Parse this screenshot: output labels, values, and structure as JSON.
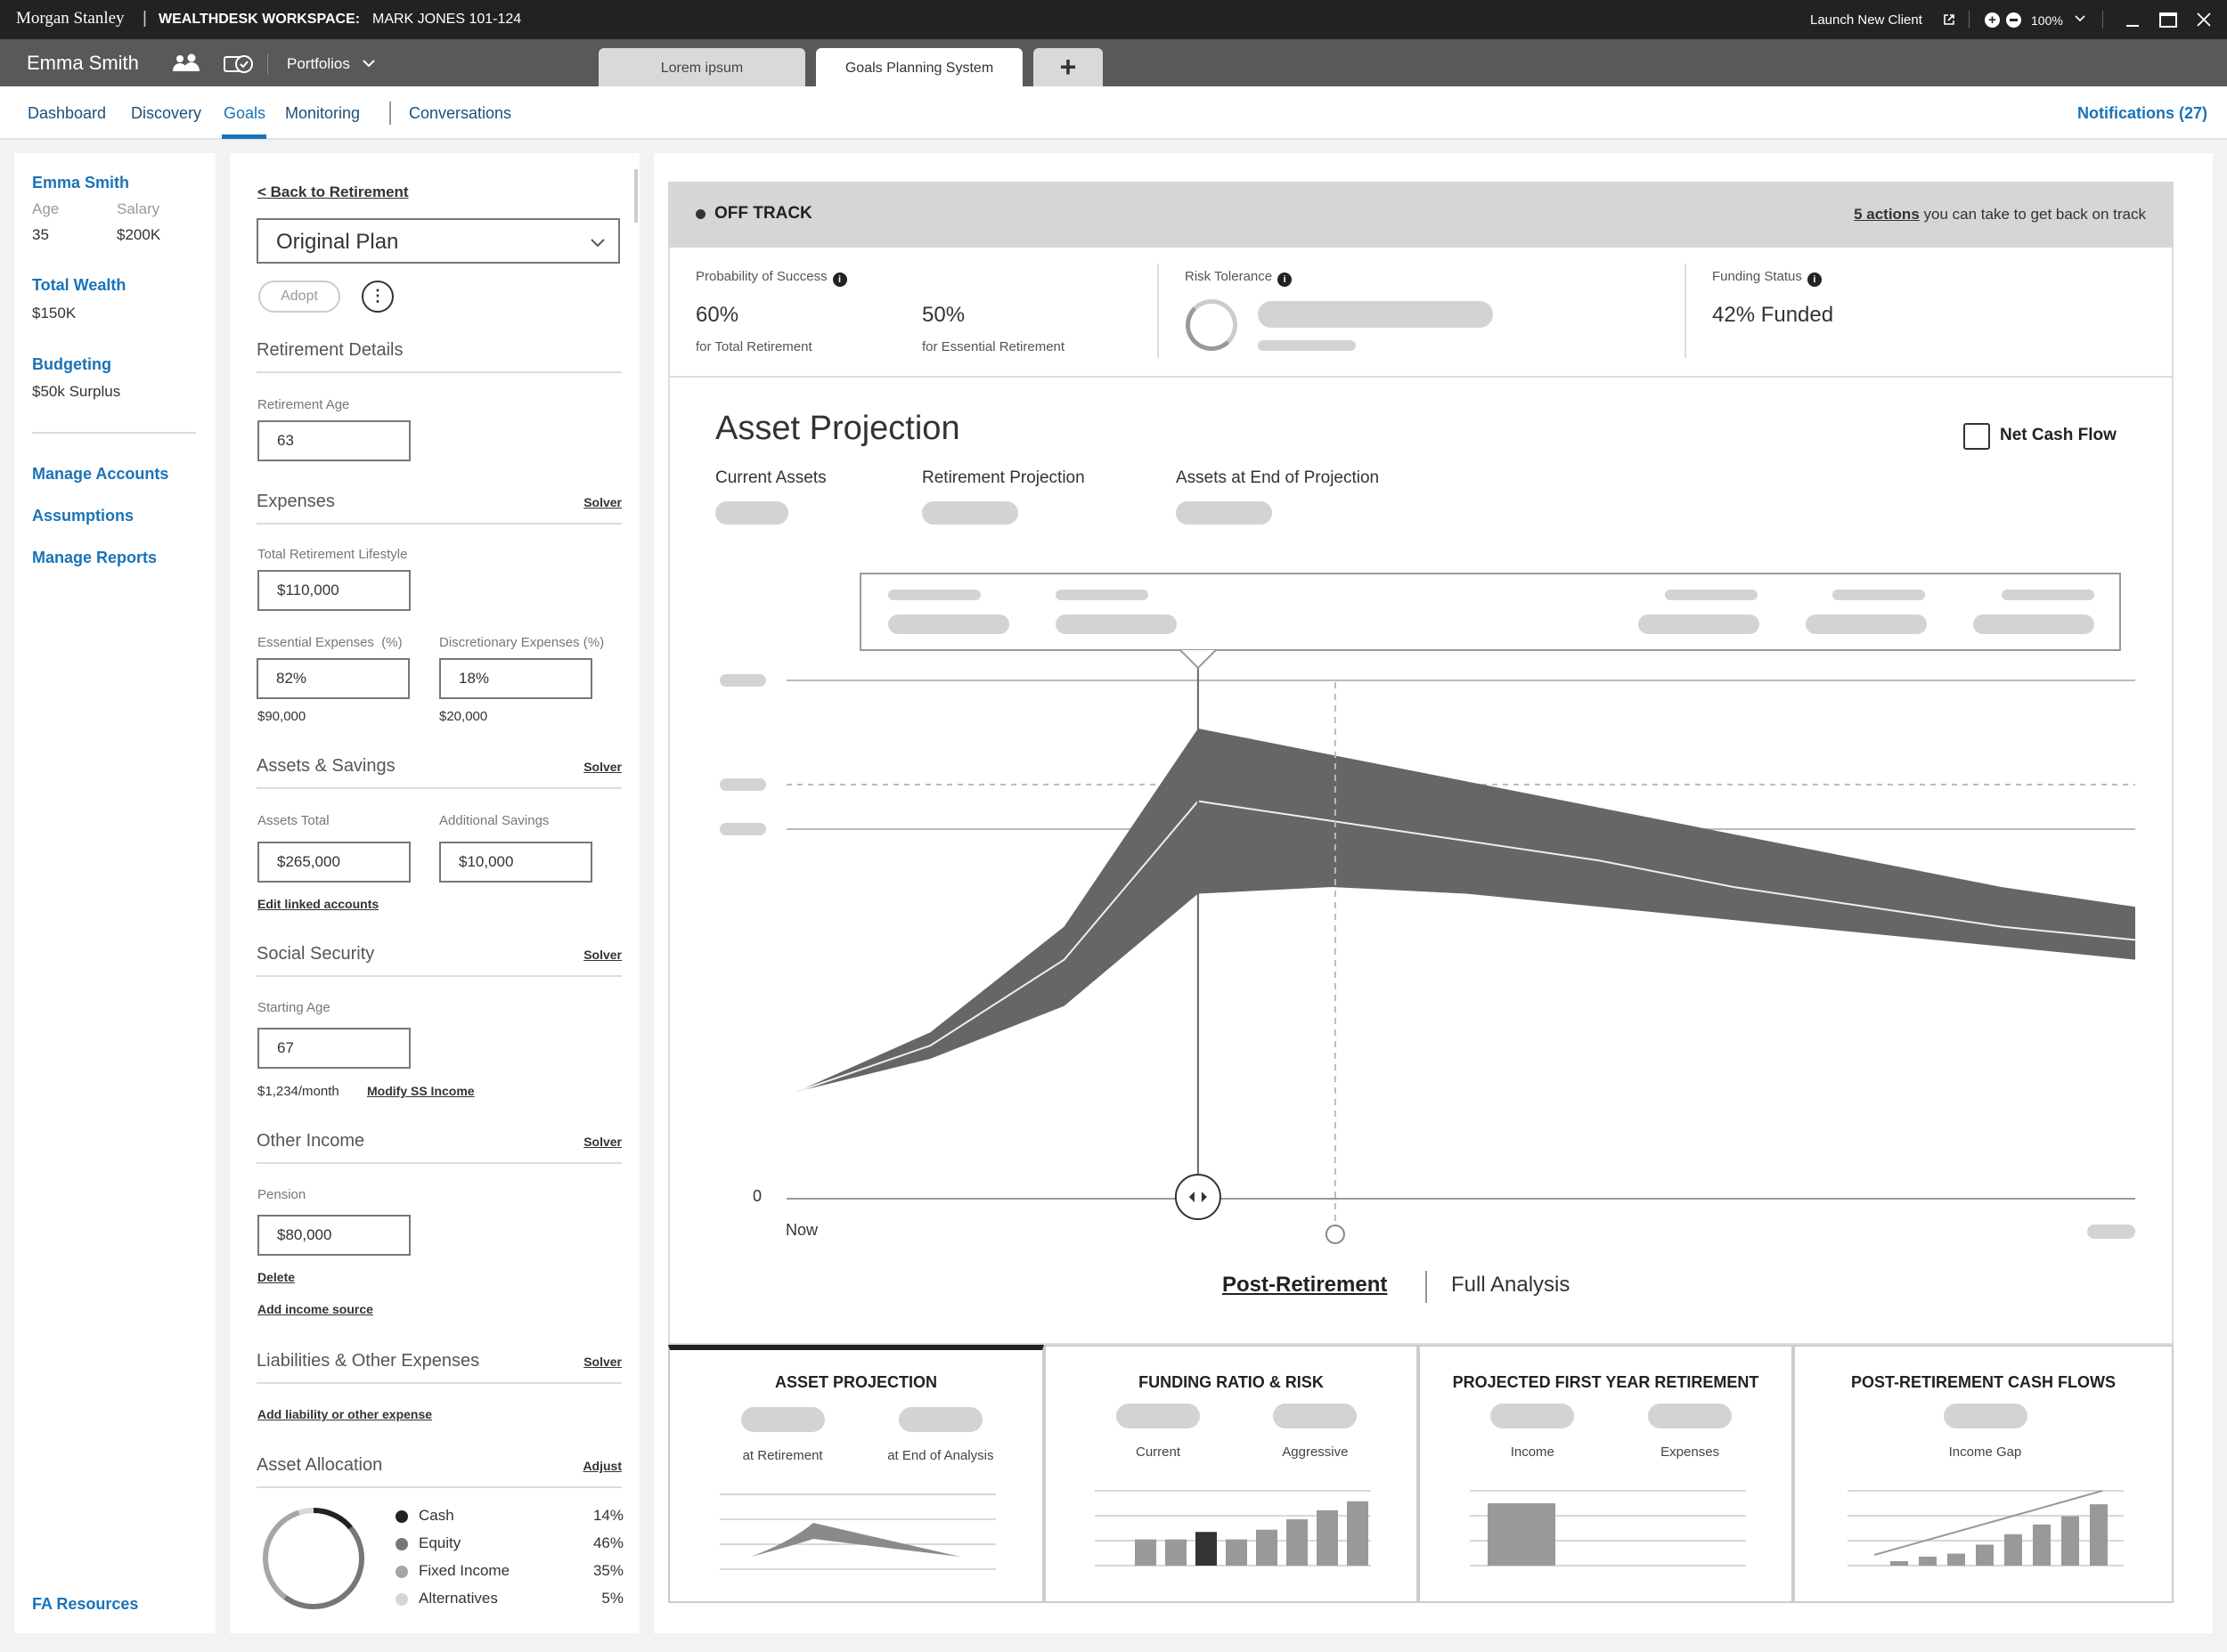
{
  "topbar": {
    "brand": "Morgan Stanley",
    "separator": "|",
    "workspace_label": "WEALTHDESK WORKSPACE:",
    "workspace_user": "MARK JONES 101-124",
    "launch_label": "Launch New Client",
    "zoom": "100%"
  },
  "client_bar": {
    "name": "Emma Smith",
    "portfolios_label": "Portfolios",
    "tabs": [
      "Lorem ipsum",
      "Goals Planning System"
    ],
    "add_tab_symbol": "+"
  },
  "nav": {
    "items": [
      "Dashboard",
      "Discovery",
      "Goals",
      "Monitoring",
      "Conversations"
    ],
    "active": "Goals",
    "notifications": "Notifications (27)"
  },
  "profile": {
    "name": "Emma Smith",
    "age_label": "Age",
    "age": "35",
    "salary_label": "Salary",
    "salary": "$200K",
    "wealth_label": "Total Wealth",
    "wealth": "$150K",
    "budget_label": "Budgeting",
    "budget": "$50k Surplus",
    "links": [
      "Manage Accounts",
      "Assumptions",
      "Manage Reports"
    ],
    "fa_resources": "FA Resources"
  },
  "plan": {
    "back_link": "< Back to Retirement",
    "plan_select": "Original Plan",
    "adopt": "Adopt",
    "retirement_details": "Retirement Details",
    "retirement_age_label": "Retirement Age",
    "retirement_age": "63",
    "expenses": "Expenses",
    "solver": "Solver",
    "total_lifestyle_label": "Total Retirement Lifestyle",
    "total_lifestyle": "$110,000",
    "essential_label": "Essential Expenses  (%)",
    "essential": "82%",
    "essential_amount": "$90,000",
    "discretionary_label": "Discretionary Expenses (%)",
    "discretionary": "18%",
    "discretionary_amount": "$20,000",
    "assets_savings": "Assets & Savings",
    "assets_total_label": "Assets Total",
    "assets_total": "$265,000",
    "additional_savings_label": "Additional Savings",
    "additional_savings": "$10,000",
    "edit_linked": "Edit linked accounts",
    "social_security": "Social Security",
    "starting_age_label": "Starting Age",
    "starting_age": "67",
    "ss_monthly": "$1,234/month",
    "modify_ss": "Modify SS Income",
    "other_income": "Other Income",
    "pension_label": "Pension",
    "pension": "$80,000",
    "delete": "Delete",
    "add_income": "Add income source",
    "liabilities": "Liabilities & Other Expenses",
    "add_liability": "Add liability or other expense",
    "asset_allocation": "Asset Allocation",
    "adjust": "Adjust",
    "allocation": [
      {
        "name": "Cash",
        "pct": "14%",
        "color": "#222222"
      },
      {
        "name": "Equity",
        "pct": "46%",
        "color": "#777777"
      },
      {
        "name": "Fixed Income",
        "pct": "35%",
        "color": "#a6a6a6"
      },
      {
        "name": "Alternatives",
        "pct": "5%",
        "color": "#d6d6d6"
      }
    ]
  },
  "status": {
    "label": "OFF TRACK",
    "actions_link": "5 actions",
    "actions_text": "you can take to get back on track"
  },
  "kpis": {
    "pos_label": "Probability of Success",
    "pos_total": "60%",
    "pos_total_sub": "for Total Retirement",
    "pos_essential": "50%",
    "pos_essential_sub": "for Essential Retirement",
    "risk_label": "Risk Tolerance",
    "funding_label": "Funding Status",
    "funding_value": "42% Funded"
  },
  "projection": {
    "title": "Asset Projection",
    "net_cash_flow": "Net Cash Flow",
    "metrics": [
      "Current Assets",
      "Retirement Projection",
      "Assets at End of Projection"
    ],
    "y_zero": "0",
    "x_start": "Now",
    "toggle_active": "Post-Retirement",
    "toggle_other": "Full Analysis"
  },
  "chart_data": {
    "type": "area",
    "x": [
      0,
      0.1,
      0.2,
      0.3,
      0.4,
      0.5,
      0.6,
      0.7,
      0.8,
      0.9,
      1
    ],
    "series": [
      {
        "values": [
          0,
          0.09,
          0.25,
          0.55,
          0.51,
          0.47,
          0.43,
          0.39,
          0.35,
          0.31,
          0.28
        ]
      },
      {
        "values": [
          0,
          0.07,
          0.2,
          0.44,
          0.41,
          0.38,
          0.35,
          0.31,
          0.28,
          0.25,
          0.23
        ]
      },
      {
        "values": [
          0,
          0.05,
          0.13,
          0.3,
          0.31,
          0.3,
          0.28,
          0.26,
          0.24,
          0.22,
          0.2
        ]
      }
    ],
    "xlabel": "",
    "ylabel": "",
    "grid": true
  },
  "cards": [
    {
      "title": "ASSET PROJECTION",
      "subs": [
        "at Retirement",
        "at End of Analysis"
      ],
      "mini": "area"
    },
    {
      "title": "FUNDING RATIO & RISK",
      "subs": [
        "Current",
        "Aggressive"
      ],
      "mini": "bars",
      "bars": [
        0.35,
        0.35,
        0.45,
        0.35,
        0.48,
        0.62,
        0.74,
        0.86
      ],
      "highlight": 2
    },
    {
      "title": "PROJECTED FIRST YEAR RETIREMENT",
      "subs": [
        "Income",
        "Expenses"
      ],
      "mini": "block"
    },
    {
      "title": "POST-RETIREMENT CASH FLOWS",
      "subs": [
        "Income Gap"
      ],
      "mini": "bars",
      "bars": [
        0.06,
        0.12,
        0.16,
        0.28,
        0.42,
        0.55,
        0.66,
        0.82
      ],
      "highlight": -1
    }
  ]
}
